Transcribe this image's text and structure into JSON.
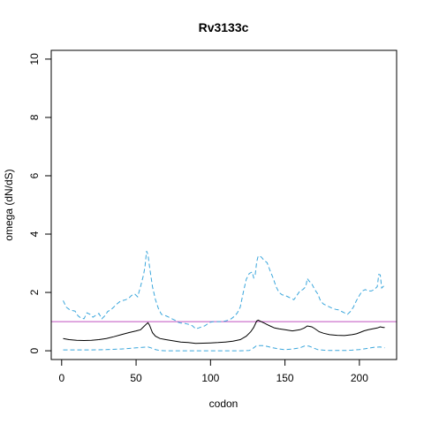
{
  "chart_data": {
    "type": "line",
    "title": "Rv3133c",
    "xlabel": "codon",
    "ylabel": "omega (dN/dS)",
    "xlim": [
      -7,
      225
    ],
    "ylim": [
      -0.3,
      10.3
    ],
    "x_ticks": [
      0,
      50,
      100,
      150,
      200
    ],
    "y_ticks": [
      0,
      2,
      4,
      6,
      8,
      10
    ],
    "reference_line": {
      "y": 1,
      "color": "#c050c0"
    },
    "series": [
      {
        "role": "upper-bound",
        "color": "#3aa6dc",
        "style": "dashed",
        "points": [
          [
            1,
            1.72
          ],
          [
            3,
            1.5
          ],
          [
            5,
            1.42
          ],
          [
            7,
            1.38
          ],
          [
            9,
            1.36
          ],
          [
            11,
            1.2
          ],
          [
            13,
            1.12
          ],
          [
            15,
            1.1
          ],
          [
            17,
            1.3
          ],
          [
            19,
            1.25
          ],
          [
            21,
            1.15
          ],
          [
            23,
            1.22
          ],
          [
            25,
            1.28
          ],
          [
            27,
            1.1
          ],
          [
            29,
            1.2
          ],
          [
            31,
            1.35
          ],
          [
            33,
            1.4
          ],
          [
            35,
            1.5
          ],
          [
            37,
            1.6
          ],
          [
            39,
            1.68
          ],
          [
            41,
            1.72
          ],
          [
            43,
            1.75
          ],
          [
            45,
            1.8
          ],
          [
            47,
            1.9
          ],
          [
            49,
            1.95
          ],
          [
            51,
            1.85
          ],
          [
            53,
            2.2
          ],
          [
            55,
            2.6
          ],
          [
            56,
            2.9
          ],
          [
            57,
            3.42
          ],
          [
            58,
            3.3
          ],
          [
            59,
            2.9
          ],
          [
            61,
            2.2
          ],
          [
            63,
            1.75
          ],
          [
            65,
            1.45
          ],
          [
            67,
            1.25
          ],
          [
            70,
            1.2
          ],
          [
            72,
            1.15
          ],
          [
            74,
            1.1
          ],
          [
            76,
            1.05
          ],
          [
            78,
            0.98
          ],
          [
            80,
            0.95
          ],
          [
            82,
            0.95
          ],
          [
            84,
            0.92
          ],
          [
            86,
            0.9
          ],
          [
            88,
            0.85
          ],
          [
            90,
            0.75
          ],
          [
            92,
            0.78
          ],
          [
            94,
            0.82
          ],
          [
            96,
            0.85
          ],
          [
            98,
            0.92
          ],
          [
            100,
            0.98
          ],
          [
            102,
            1.0
          ],
          [
            104,
            1.0
          ],
          [
            106,
            1.0
          ],
          [
            108,
            1.0
          ],
          [
            110,
            1.02
          ],
          [
            112,
            1.05
          ],
          [
            114,
            1.1
          ],
          [
            116,
            1.18
          ],
          [
            118,
            1.3
          ],
          [
            120,
            1.5
          ],
          [
            122,
            2.0
          ],
          [
            124,
            2.45
          ],
          [
            126,
            2.65
          ],
          [
            128,
            2.7
          ],
          [
            129,
            2.5
          ],
          [
            130,
            2.6
          ],
          [
            131,
            3.05
          ],
          [
            132,
            3.25
          ],
          [
            134,
            3.22
          ],
          [
            136,
            3.1
          ],
          [
            138,
            3.02
          ],
          [
            140,
            2.75
          ],
          [
            142,
            2.5
          ],
          [
            144,
            2.2
          ],
          [
            146,
            2.0
          ],
          [
            148,
            1.92
          ],
          [
            150,
            1.9
          ],
          [
            152,
            1.85
          ],
          [
            154,
            1.8
          ],
          [
            156,
            1.75
          ],
          [
            158,
            1.9
          ],
          [
            160,
            2.05
          ],
          [
            162,
            2.1
          ],
          [
            164,
            2.2
          ],
          [
            165,
            2.48
          ],
          [
            166,
            2.4
          ],
          [
            168,
            2.3
          ],
          [
            170,
            2.1
          ],
          [
            172,
            1.95
          ],
          [
            174,
            1.7
          ],
          [
            176,
            1.6
          ],
          [
            178,
            1.55
          ],
          [
            180,
            1.5
          ],
          [
            182,
            1.45
          ],
          [
            184,
            1.42
          ],
          [
            186,
            1.4
          ],
          [
            188,
            1.35
          ],
          [
            190,
            1.3
          ],
          [
            192,
            1.25
          ],
          [
            194,
            1.35
          ],
          [
            196,
            1.5
          ],
          [
            198,
            1.72
          ],
          [
            200,
            1.9
          ],
          [
            202,
            2.05
          ],
          [
            204,
            2.1
          ],
          [
            206,
            2.05
          ],
          [
            208,
            2.05
          ],
          [
            210,
            2.1
          ],
          [
            212,
            2.2
          ],
          [
            213,
            2.62
          ],
          [
            214,
            2.6
          ],
          [
            215,
            2.15
          ],
          [
            217,
            2.25
          ]
        ]
      },
      {
        "role": "estimate",
        "color": "#000000",
        "style": "solid",
        "points": [
          [
            1,
            0.42
          ],
          [
            5,
            0.38
          ],
          [
            10,
            0.36
          ],
          [
            15,
            0.35
          ],
          [
            20,
            0.36
          ],
          [
            25,
            0.38
          ],
          [
            30,
            0.42
          ],
          [
            35,
            0.48
          ],
          [
            40,
            0.55
          ],
          [
            45,
            0.62
          ],
          [
            50,
            0.68
          ],
          [
            53,
            0.72
          ],
          [
            55,
            0.82
          ],
          [
            57,
            0.92
          ],
          [
            58,
            0.96
          ],
          [
            59,
            0.88
          ],
          [
            61,
            0.62
          ],
          [
            63,
            0.5
          ],
          [
            66,
            0.42
          ],
          [
            70,
            0.38
          ],
          [
            75,
            0.34
          ],
          [
            80,
            0.3
          ],
          [
            85,
            0.28
          ],
          [
            90,
            0.25
          ],
          [
            95,
            0.26
          ],
          [
            100,
            0.27
          ],
          [
            105,
            0.28
          ],
          [
            110,
            0.3
          ],
          [
            115,
            0.33
          ],
          [
            120,
            0.38
          ],
          [
            124,
            0.5
          ],
          [
            127,
            0.65
          ],
          [
            129,
            0.8
          ],
          [
            131,
            1.02
          ],
          [
            132,
            1.05
          ],
          [
            134,
            1.0
          ],
          [
            136,
            0.95
          ],
          [
            138,
            0.9
          ],
          [
            140,
            0.85
          ],
          [
            143,
            0.78
          ],
          [
            146,
            0.75
          ],
          [
            150,
            0.72
          ],
          [
            155,
            0.68
          ],
          [
            160,
            0.72
          ],
          [
            163,
            0.78
          ],
          [
            165,
            0.85
          ],
          [
            168,
            0.82
          ],
          [
            170,
            0.76
          ],
          [
            173,
            0.65
          ],
          [
            176,
            0.6
          ],
          [
            180,
            0.55
          ],
          [
            185,
            0.53
          ],
          [
            190,
            0.52
          ],
          [
            195,
            0.55
          ],
          [
            198,
            0.58
          ],
          [
            200,
            0.62
          ],
          [
            203,
            0.68
          ],
          [
            206,
            0.72
          ],
          [
            209,
            0.75
          ],
          [
            212,
            0.78
          ],
          [
            214,
            0.82
          ],
          [
            216,
            0.8
          ],
          [
            217,
            0.8
          ]
        ]
      },
      {
        "role": "lower-bound",
        "color": "#3aa6dc",
        "style": "dashed",
        "points": [
          [
            1,
            0.03
          ],
          [
            10,
            0.03
          ],
          [
            20,
            0.03
          ],
          [
            30,
            0.04
          ],
          [
            40,
            0.06
          ],
          [
            45,
            0.08
          ],
          [
            50,
            0.1
          ],
          [
            55,
            0.12
          ],
          [
            58,
            0.13
          ],
          [
            60,
            0.1
          ],
          [
            63,
            0.04
          ],
          [
            66,
            0.01
          ],
          [
            70,
            0.0
          ],
          [
            80,
            0.0
          ],
          [
            90,
            0.0
          ],
          [
            100,
            0.0
          ],
          [
            110,
            0.0
          ],
          [
            120,
            0.0
          ],
          [
            126,
            0.01
          ],
          [
            129,
            0.1
          ],
          [
            131,
            0.18
          ],
          [
            135,
            0.18
          ],
          [
            138,
            0.15
          ],
          [
            142,
            0.1
          ],
          [
            146,
            0.06
          ],
          [
            150,
            0.04
          ],
          [
            155,
            0.06
          ],
          [
            160,
            0.1
          ],
          [
            163,
            0.16
          ],
          [
            166,
            0.16
          ],
          [
            169,
            0.1
          ],
          [
            172,
            0.04
          ],
          [
            176,
            0.02
          ],
          [
            180,
            0.01
          ],
          [
            190,
            0.01
          ],
          [
            195,
            0.02
          ],
          [
            200,
            0.04
          ],
          [
            205,
            0.08
          ],
          [
            210,
            0.12
          ],
          [
            214,
            0.13
          ],
          [
            217,
            0.1
          ]
        ]
      }
    ]
  }
}
